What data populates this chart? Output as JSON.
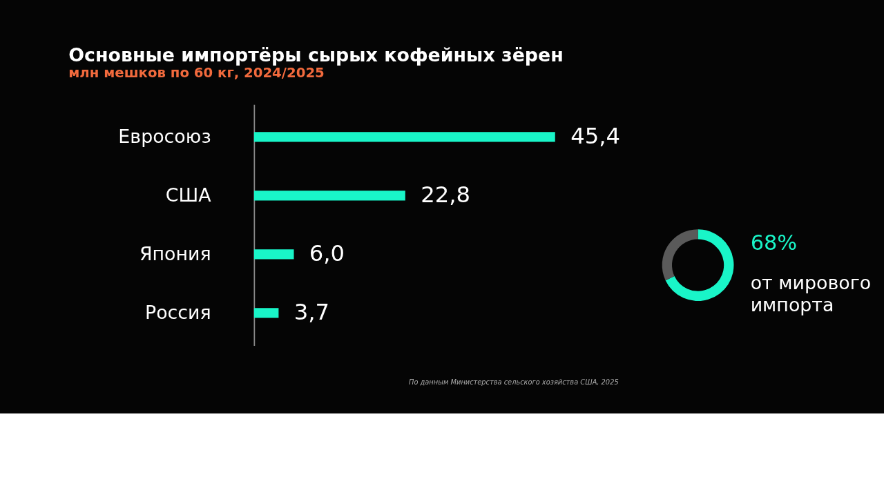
{
  "chart_data": [
    {
      "type": "bar",
      "orientation": "horizontal",
      "title": "Основные импортёры сырых кофейных зёрен",
      "subtitle": "млн мешков по 60 кг, 2024/2025",
      "categories": [
        "Евросоюз",
        "США",
        "Япония",
        "Россия"
      ],
      "values": [
        45.4,
        22.8,
        6.0,
        3.7
      ],
      "color": "#19f5c8",
      "value_labels": [
        "45,4",
        "22,8",
        "6,0",
        "3,7"
      ],
      "tick_labels": "y",
      "annotations": [
        "По данным Министерства сельского хозяйства США, 2025"
      ]
    },
    {
      "type": "donut",
      "categories": [
        null,
        null
      ],
      "values": [
        68,
        32
      ],
      "colors": [
        "#19f5c8",
        "#5a5a5a"
      ],
      "annotations": [
        "68%",
        "от мирового\nимпорта"
      ]
    }
  ]
}
